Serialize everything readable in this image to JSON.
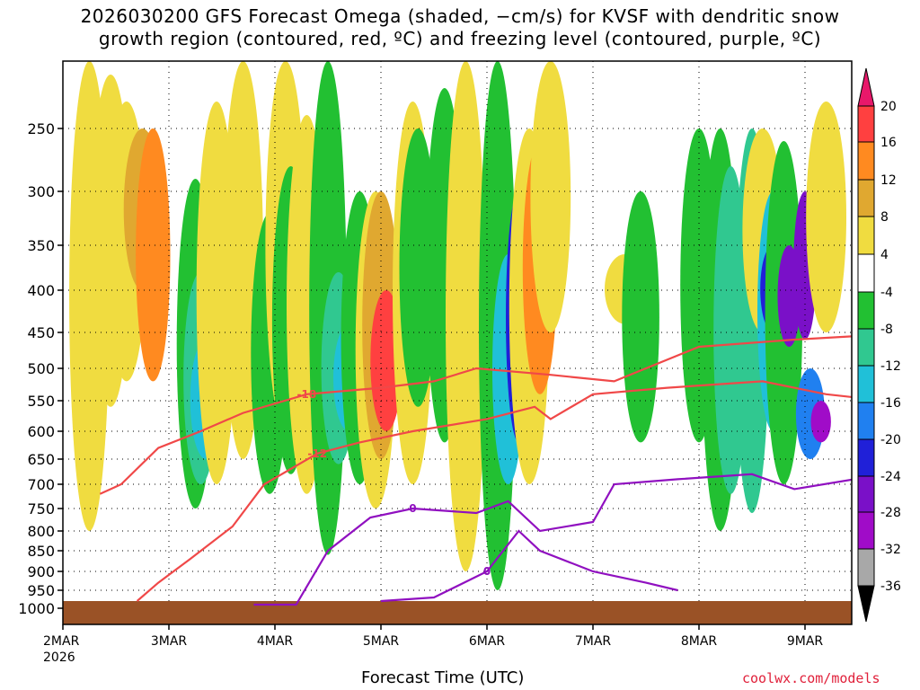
{
  "title_line1": "2026030200 GFS Forecast Omega (shaded, −cm/s) for KVSF with dendritic snow",
  "title_line2": "growth region (contoured, red, ºC) and freezing level (contoured, purple, ºC)",
  "credit": "coolwx.com/models",
  "chart_data": {
    "type": "heatmap",
    "title": "2026030200 GFS Forecast Omega (shaded, −cm/s) for KVSF with dendritic snow growth region (contoured, red, ºC) and freezing level (contoured, purple, ºC)",
    "xlabel": "Forecast Time (UTC)",
    "ylabel": "",
    "x_ticks": [
      "2MAR",
      "3MAR",
      "4MAR",
      "5MAR",
      "6MAR",
      "7MAR",
      "8MAR",
      "9MAR"
    ],
    "x_year": "2026",
    "xlim_days": [
      0,
      7.75
    ],
    "y_ticks": [
      250,
      300,
      350,
      400,
      450,
      500,
      550,
      600,
      650,
      700,
      750,
      800,
      850,
      900,
      950,
      1000
    ],
    "y_tick_labels": [
      "250",
      "300",
      "350",
      "400",
      "450",
      "500",
      "550",
      "600",
      "650",
      "700",
      "750",
      "800",
      "850",
      "900",
      "950",
      "1000"
    ],
    "ylim_hpa": [
      200,
      1000
    ],
    "colorbar": {
      "labels": [
        "20",
        "16",
        "12",
        "8",
        "4",
        "-4",
        "-8",
        "-12",
        "-16",
        "-20",
        "-24",
        "-28",
        "-32",
        "-36"
      ],
      "colors": [
        "#e8186a",
        "#ff4040",
        "#ff8a20",
        "#e0a830",
        "#f0dc40",
        "#ffffff",
        "#22c032",
        "#30c890",
        "#20c0d8",
        "#2080f0",
        "#2020d8",
        "#7a10c8",
        "#a00cc8",
        "#a8a8a8",
        "#000000"
      ]
    },
    "omega_cells": [
      {
        "day": 0.25,
        "p_top": 200,
        "p_bot": 800,
        "value": 4
      },
      {
        "day": 0.45,
        "p_top": 210,
        "p_bot": 560,
        "value": 4
      },
      {
        "day": 0.6,
        "p_top": 230,
        "p_bot": 520,
        "value": 4
      },
      {
        "day": 0.75,
        "p_top": 250,
        "p_bot": 400,
        "value": 8
      },
      {
        "day": 0.85,
        "p_top": 250,
        "p_bot": 520,
        "value": 12
      },
      {
        "day": 1.25,
        "p_top": 290,
        "p_bot": 750,
        "value": -8
      },
      {
        "day": 1.3,
        "p_top": 380,
        "p_bot": 700,
        "value": -12
      },
      {
        "day": 1.35,
        "p_top": 460,
        "p_bot": 650,
        "value": -16
      },
      {
        "day": 1.45,
        "p_top": 230,
        "p_bot": 700,
        "value": 4
      },
      {
        "day": 1.7,
        "p_top": 200,
        "p_bot": 650,
        "value": 4
      },
      {
        "day": 1.95,
        "p_top": 320,
        "p_bot": 720,
        "value": -8
      },
      {
        "day": 2.1,
        "p_top": 200,
        "p_bot": 600,
        "value": 4
      },
      {
        "day": 2.15,
        "p_top": 280,
        "p_bot": 680,
        "value": -8
      },
      {
        "day": 2.3,
        "p_top": 240,
        "p_bot": 720,
        "value": 4
      },
      {
        "day": 2.5,
        "p_top": 200,
        "p_bot": 860,
        "value": -8
      },
      {
        "day": 2.6,
        "p_top": 380,
        "p_bot": 660,
        "value": -12
      },
      {
        "day": 2.7,
        "p_top": 440,
        "p_bot": 600,
        "value": -16
      },
      {
        "day": 2.8,
        "p_top": 300,
        "p_bot": 700,
        "value": -8
      },
      {
        "day": 2.95,
        "p_top": 300,
        "p_bot": 750,
        "value": 4
      },
      {
        "day": 3.0,
        "p_top": 300,
        "p_bot": 650,
        "value": 8
      },
      {
        "day": 3.05,
        "p_top": 400,
        "p_bot": 600,
        "value": 16
      },
      {
        "day": 3.3,
        "p_top": 230,
        "p_bot": 700,
        "value": 4
      },
      {
        "day": 3.35,
        "p_top": 250,
        "p_bot": 560,
        "value": -8
      },
      {
        "day": 3.6,
        "p_top": 220,
        "p_bot": 620,
        "value": -8
      },
      {
        "day": 3.8,
        "p_top": 200,
        "p_bot": 900,
        "value": 4
      },
      {
        "day": 4.1,
        "p_top": 200,
        "p_bot": 950,
        "value": -8
      },
      {
        "day": 4.2,
        "p_top": 360,
        "p_bot": 700,
        "value": -16
      },
      {
        "day": 4.3,
        "p_top": 300,
        "p_bot": 620,
        "value": -24
      },
      {
        "day": 4.4,
        "p_top": 250,
        "p_bot": 700,
        "value": 4
      },
      {
        "day": 4.5,
        "p_top": 260,
        "p_bot": 540,
        "value": 12
      },
      {
        "day": 4.6,
        "p_top": 200,
        "p_bot": 450,
        "value": 4
      },
      {
        "day": 5.3,
        "p_top": 360,
        "p_bot": 440,
        "value": 4
      },
      {
        "day": 5.45,
        "p_top": 300,
        "p_bot": 620,
        "value": -8
      },
      {
        "day": 6.0,
        "p_top": 250,
        "p_bot": 620,
        "value": -8
      },
      {
        "day": 6.2,
        "p_top": 250,
        "p_bot": 800,
        "value": -8
      },
      {
        "day": 6.3,
        "p_top": 280,
        "p_bot": 720,
        "value": -12
      },
      {
        "day": 6.5,
        "p_top": 250,
        "p_bot": 760,
        "value": -12
      },
      {
        "day": 6.6,
        "p_top": 250,
        "p_bot": 450,
        "value": 4
      },
      {
        "day": 6.7,
        "p_top": 300,
        "p_bot": 600,
        "value": -16
      },
      {
        "day": 6.7,
        "p_top": 350,
        "p_bot": 450,
        "value": -24
      },
      {
        "day": 6.8,
        "p_top": 260,
        "p_bot": 700,
        "value": -8
      },
      {
        "day": 6.85,
        "p_top": 350,
        "p_bot": 470,
        "value": -28
      },
      {
        "day": 7.0,
        "p_top": 300,
        "p_bot": 460,
        "value": -28
      },
      {
        "day": 7.05,
        "p_top": 500,
        "p_bot": 650,
        "value": -20
      },
      {
        "day": 7.15,
        "p_top": 550,
        "p_bot": 620,
        "value": -32
      },
      {
        "day": 7.2,
        "p_top": 230,
        "p_bot": 450,
        "value": 4
      }
    ],
    "contours": [
      {
        "label": "-18",
        "color": "red",
        "points": [
          [
            0.35,
            720
          ],
          [
            0.55,
            700
          ],
          [
            0.9,
            630
          ],
          [
            1.3,
            600
          ],
          [
            1.7,
            570
          ],
          [
            2.3,
            540
          ],
          [
            3.0,
            530
          ],
          [
            3.5,
            520
          ],
          [
            3.9,
            500
          ],
          [
            4.6,
            510
          ],
          [
            5.2,
            520
          ],
          [
            6.0,
            470
          ],
          [
            6.9,
            460
          ],
          [
            7.5,
            455
          ],
          [
            7.75,
            450
          ]
        ]
      },
      {
        "label": "-12",
        "color": "red",
        "points": [
          [
            0.7,
            980
          ],
          [
            0.9,
            930
          ],
          [
            1.2,
            870
          ],
          [
            1.6,
            790
          ],
          [
            1.9,
            700
          ],
          [
            2.4,
            640
          ],
          [
            2.8,
            620
          ],
          [
            3.3,
            600
          ],
          [
            4.0,
            580
          ],
          [
            4.45,
            560
          ],
          [
            4.6,
            580
          ],
          [
            5.0,
            540
          ],
          [
            5.7,
            530
          ],
          [
            6.6,
            520
          ],
          [
            7.2,
            540
          ],
          [
            7.75,
            550
          ]
        ]
      },
      {
        "label": "0",
        "color": "purple",
        "points": [
          [
            1.8,
            990
          ],
          [
            2.2,
            990
          ],
          [
            2.5,
            850
          ],
          [
            2.9,
            770
          ],
          [
            3.3,
            750
          ],
          [
            3.9,
            760
          ],
          [
            4.2,
            735
          ],
          [
            4.5,
            800
          ],
          [
            5.0,
            780
          ],
          [
            5.2,
            700
          ],
          [
            5.8,
            690
          ],
          [
            6.5,
            680
          ],
          [
            6.9,
            710
          ],
          [
            7.75,
            680
          ]
        ]
      },
      {
        "label": "0",
        "color": "purple",
        "points": [
          [
            3.0,
            980
          ],
          [
            3.5,
            970
          ],
          [
            4.0,
            900
          ],
          [
            4.3,
            800
          ],
          [
            4.5,
            850
          ],
          [
            5.0,
            900
          ],
          [
            5.5,
            930
          ],
          [
            5.8,
            950
          ]
        ]
      }
    ],
    "shaded_ground_below_hpa": 975
  },
  "x_axis_title": "Forecast Time (UTC)"
}
